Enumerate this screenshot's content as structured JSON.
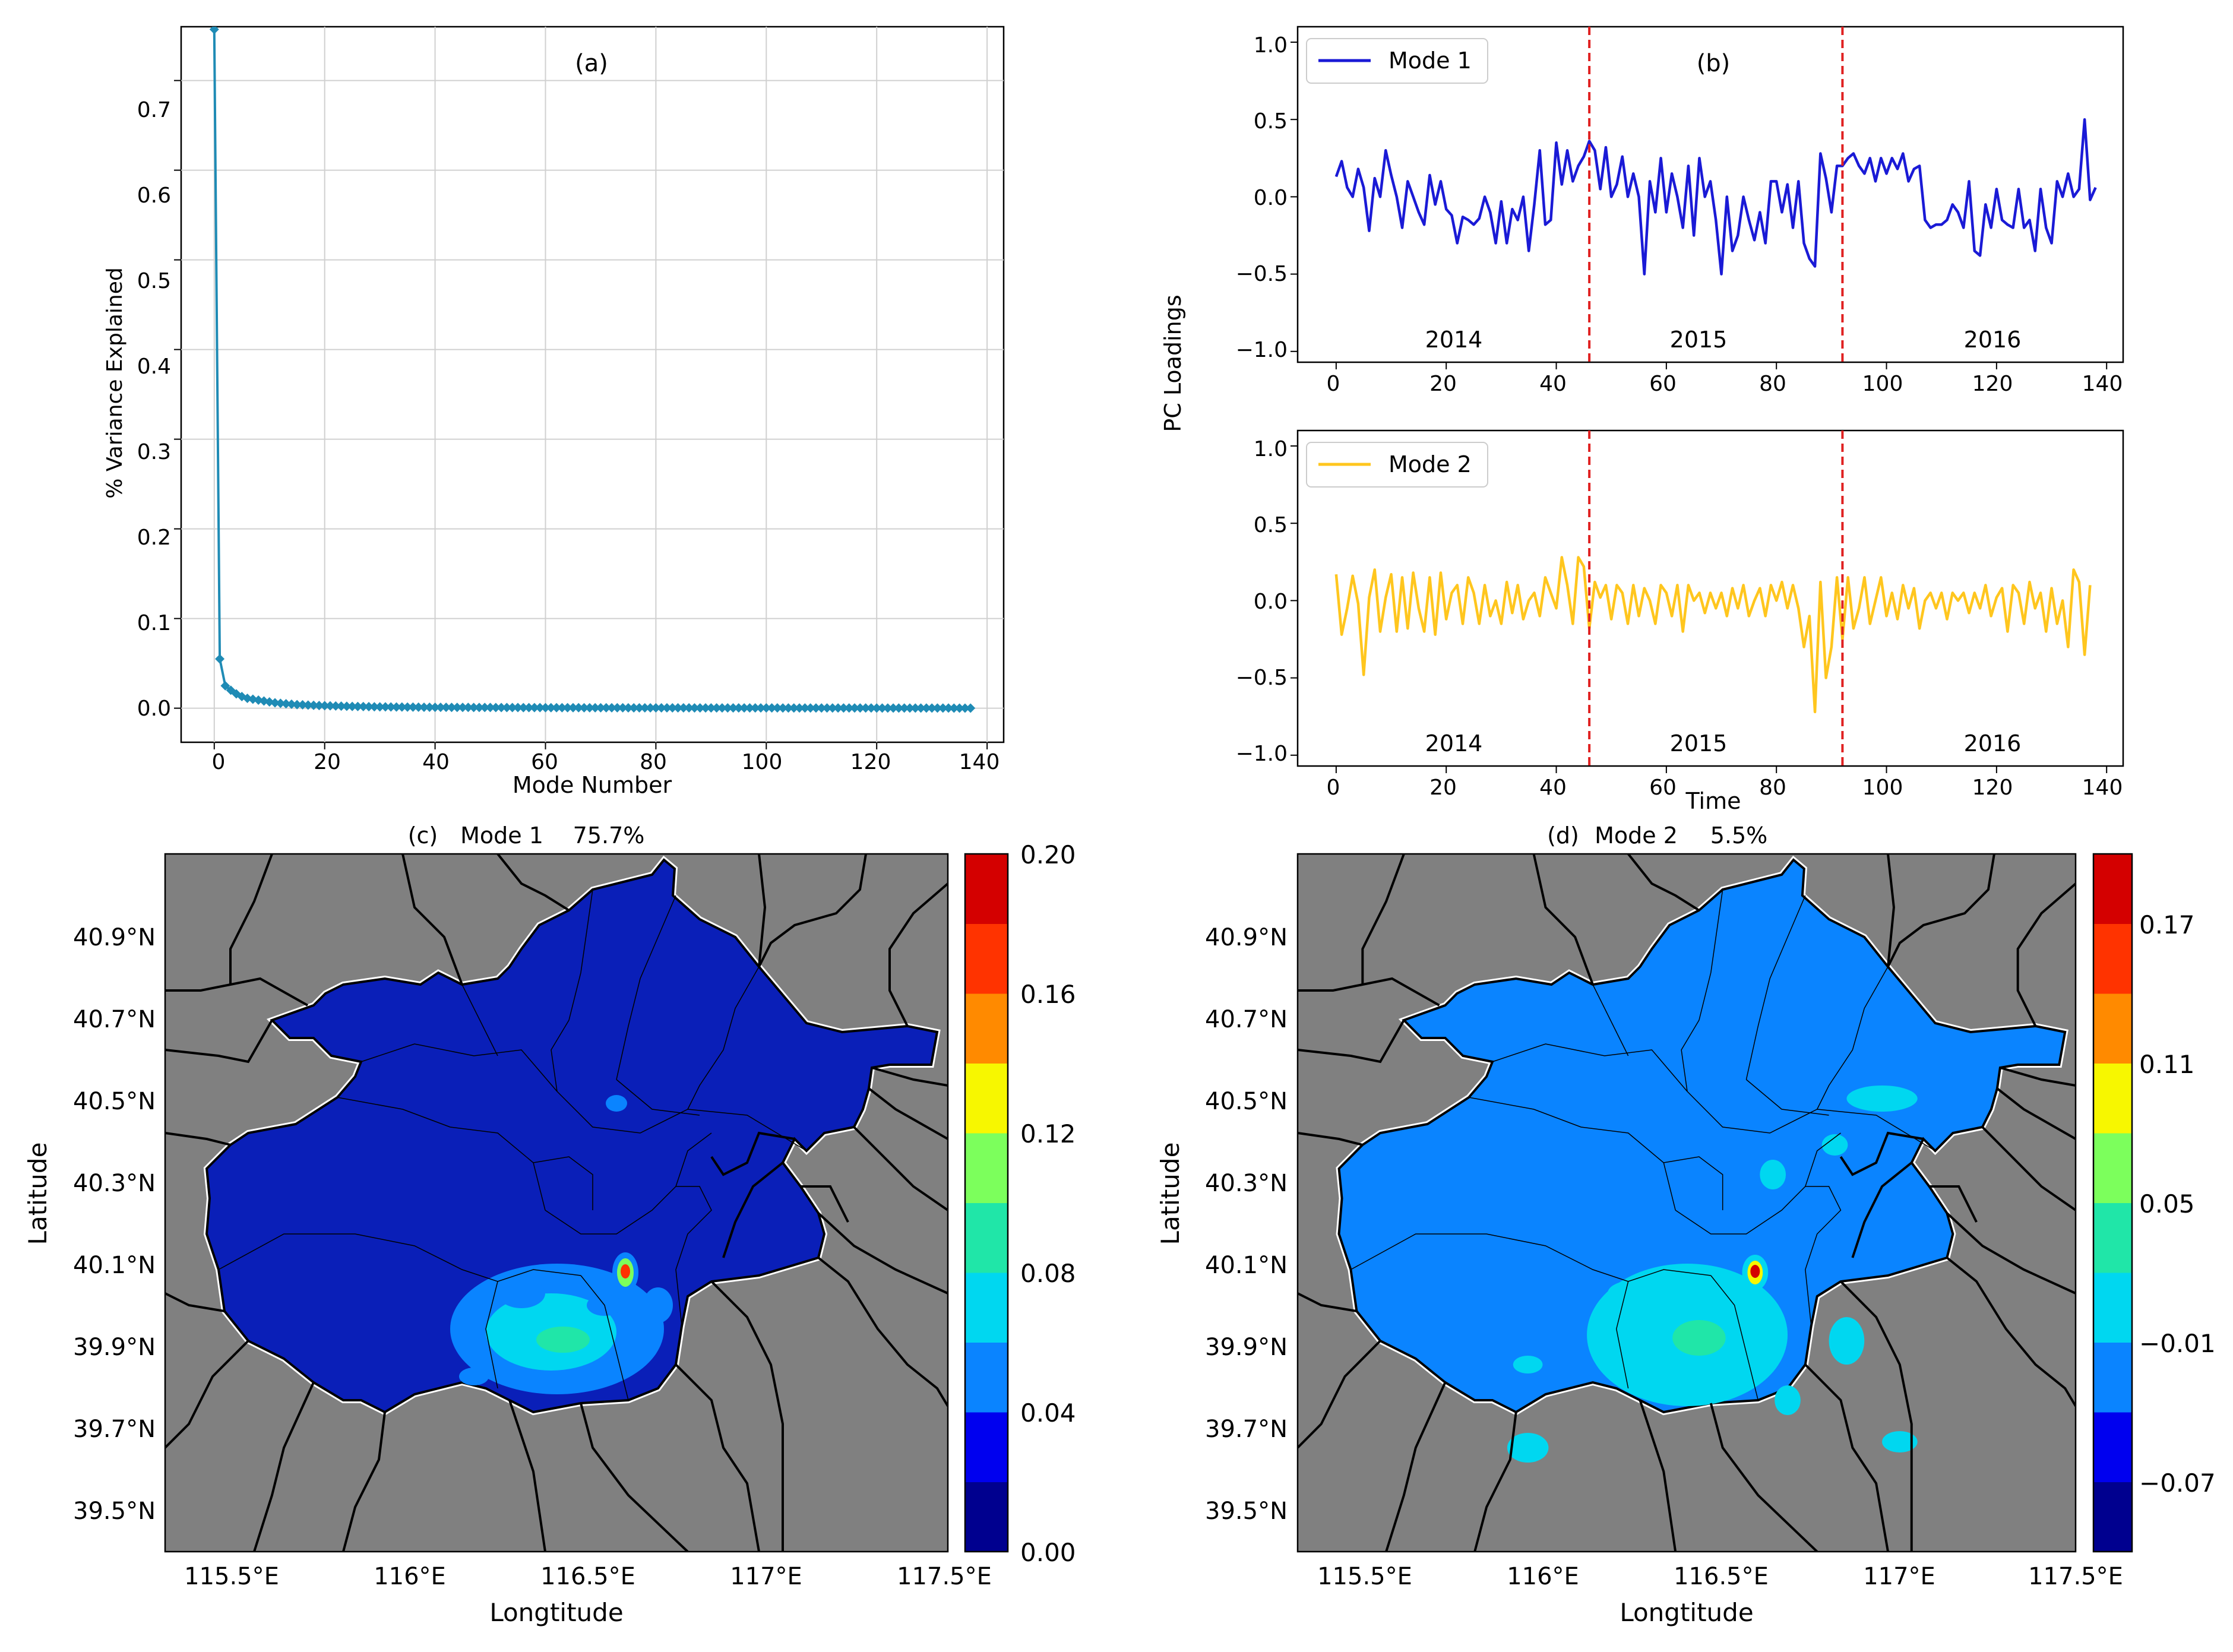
{
  "panels": {
    "a": {
      "tag": "(a)",
      "xlabel": "Mode Number",
      "ylabel": "% Variance Explained",
      "xticks": [
        "0",
        "20",
        "40",
        "60",
        "80",
        "100",
        "120",
        "140"
      ],
      "yticks": [
        "0.0",
        "0.1",
        "0.2",
        "0.3",
        "0.4",
        "0.5",
        "0.6",
        "0.7"
      ]
    },
    "b": {
      "tag": "(b)",
      "ylabel": "PC Loadings",
      "xlabel": "Time",
      "legend1": "Mode 1",
      "legend2": "Mode 2",
      "years": [
        "2014",
        "2015",
        "2016"
      ],
      "xticks": [
        "0",
        "20",
        "40",
        "60",
        "80",
        "100",
        "120",
        "140"
      ],
      "yticks": [
        "1.0",
        "0.5",
        "0.0",
        "−0.5",
        "−1.0"
      ]
    },
    "c": {
      "tag": "(c)",
      "mode": "Mode 1",
      "pct": "75.7%",
      "xlabel": "Longtitude",
      "ylabel": "Latitude",
      "cbar_ticks": [
        "0.20",
        "0.16",
        "0.12",
        "0.08",
        "0.04",
        "0.00"
      ]
    },
    "d": {
      "tag": "(d)",
      "mode": "Mode 2",
      "pct": "5.5%",
      "xlabel": "Longtitude",
      "ylabel": "Latitude",
      "cbar_ticks": [
        "0.17",
        "0.11",
        "0.05",
        "−0.01",
        "−0.07"
      ]
    },
    "map_xticks": [
      "115.5°E",
      "116°E",
      "116.5°E",
      "117°E",
      "117.5°E"
    ],
    "map_yticks": [
      "40.9°N",
      "40.7°N",
      "40.5°N",
      "40.3°N",
      "40.1°N",
      "39.9°N",
      "39.7°N",
      "39.5°N"
    ]
  },
  "colors": {
    "scree": "#1f8bb5",
    "mode1": "#1a1ad6",
    "mode2": "#ffc61e",
    "divider": "#e02020",
    "grid": "#d0d0d0",
    "land": "#808080",
    "map_c_fill": "#0a1fb8",
    "map_d_fill": "#0a84ff",
    "colorbar": [
      "#00008f",
      "#0000ef",
      "#0a84ff",
      "#00d7f0",
      "#20e6a8",
      "#7cff5c",
      "#f7f700",
      "#ff8a00",
      "#ff3300",
      "#d40000"
    ]
  },
  "chart_data": [
    {
      "type": "scatter",
      "panel": "a",
      "title": "(a)",
      "xlabel": "Mode Number",
      "ylabel": "% Variance Explained",
      "xlim": [
        -6,
        143
      ],
      "ylim": [
        -0.038,
        0.76
      ],
      "x": [
        0,
        1,
        2,
        3,
        4,
        5,
        6,
        7,
        8,
        9,
        10,
        11,
        12,
        13,
        14,
        15,
        16,
        17,
        18,
        19,
        20,
        25,
        30,
        40,
        50,
        60,
        80,
        100,
        120,
        137
      ],
      "values": [
        0.757,
        0.055,
        0.025,
        0.02,
        0.016,
        0.013,
        0.011,
        0.01,
        0.009,
        0.008,
        0.007,
        0.006,
        0.0055,
        0.005,
        0.0045,
        0.004,
        0.0038,
        0.0035,
        0.0032,
        0.003,
        0.0028,
        0.002,
        0.0015,
        0.001,
        0.0008,
        0.0006,
        0.0004,
        0.0003,
        0.0002,
        0.0001
      ]
    },
    {
      "type": "line",
      "panel": "b-top",
      "xlabel": "Time",
      "ylabel": "PC Loadings",
      "xlim": [
        -7,
        143
      ],
      "ylim": [
        -1.07,
        1.1
      ],
      "dividers": [
        46,
        92
      ],
      "series": [
        {
          "name": "Mode 1",
          "values": [
            0.13,
            0.23,
            0.06,
            0.0,
            0.18,
            0.06,
            -0.22,
            0.12,
            0.0,
            0.3,
            0.14,
            0.0,
            -0.2,
            0.1,
            0.0,
            -0.1,
            -0.18,
            0.14,
            -0.05,
            0.1,
            -0.08,
            -0.12,
            -0.3,
            -0.13,
            -0.15,
            -0.18,
            -0.14,
            0.0,
            -0.1,
            -0.3,
            -0.03,
            -0.3,
            -0.08,
            -0.15,
            0.0,
            -0.35,
            -0.05,
            0.3,
            -0.18,
            -0.15,
            0.35,
            0.08,
            0.3,
            0.1,
            0.2,
            0.26,
            0.36,
            0.3,
            0.05,
            0.32,
            0.0,
            0.08,
            0.26,
            0.0,
            0.15,
            0.0,
            -0.5,
            0.1,
            -0.1,
            0.25,
            -0.1,
            0.15,
            0.0,
            -0.2,
            0.2,
            -0.25,
            0.25,
            0.0,
            0.1,
            -0.15,
            -0.5,
            0.0,
            -0.35,
            -0.25,
            0.0,
            -0.15,
            -0.28,
            -0.1,
            -0.3,
            0.1,
            0.1,
            -0.1,
            0.08,
            -0.2,
            0.1,
            -0.3,
            -0.4,
            -0.45,
            0.28,
            0.12,
            -0.1,
            0.2,
            0.2,
            0.25,
            0.28,
            0.2,
            0.15,
            0.25,
            0.1,
            0.25,
            0.15,
            0.25,
            0.18,
            0.28,
            0.1,
            0.18,
            0.2,
            -0.15,
            -0.2,
            -0.18,
            -0.18,
            -0.15,
            -0.05,
            -0.1,
            -0.2,
            0.1,
            -0.35,
            -0.38,
            -0.05,
            -0.2,
            0.05,
            -0.15,
            -0.18,
            -0.2,
            0.05,
            -0.2,
            -0.15,
            -0.35,
            0.05,
            -0.2,
            -0.3,
            0.1,
            0.0,
            0.15,
            0.0,
            0.05,
            0.5,
            -0.02,
            0.06
          ]
        }
      ],
      "annotations": [
        "2014",
        "2015",
        "2016"
      ]
    },
    {
      "type": "line",
      "panel": "b-bottom",
      "xlabel": "Time",
      "ylabel": "PC Loadings",
      "xlim": [
        -7,
        143
      ],
      "ylim": [
        -1.07,
        1.1
      ],
      "dividers": [
        46,
        92
      ],
      "series": [
        {
          "name": "Mode 2",
          "values": [
            0.17,
            -0.22,
            -0.05,
            0.16,
            -0.02,
            -0.48,
            0.02,
            0.2,
            -0.2,
            0.02,
            0.17,
            -0.2,
            0.15,
            -0.18,
            0.18,
            -0.05,
            -0.2,
            0.15,
            -0.22,
            0.18,
            -0.12,
            0.05,
            0.1,
            -0.15,
            0.15,
            0.05,
            -0.15,
            0.1,
            -0.1,
            0.0,
            -0.15,
            0.12,
            -0.08,
            0.1,
            -0.12,
            0.0,
            0.05,
            -0.1,
            0.15,
            0.05,
            -0.05,
            0.28,
            0.1,
            -0.15,
            0.28,
            0.22,
            -0.18,
            0.12,
            0.02,
            0.1,
            -0.12,
            0.1,
            0.05,
            -0.15,
            0.1,
            -0.1,
            0.08,
            0.0,
            -0.15,
            0.1,
            0.05,
            -0.1,
            0.1,
            -0.2,
            0.1,
            0.0,
            0.05,
            -0.08,
            0.05,
            -0.05,
            0.05,
            -0.1,
            0.08,
            -0.05,
            0.1,
            -0.1,
            0.0,
            0.08,
            -0.1,
            0.1,
            0.0,
            0.12,
            -0.05,
            0.1,
            -0.05,
            -0.3,
            -0.1,
            -0.72,
            0.12,
            -0.5,
            -0.3,
            0.15,
            -0.25,
            0.15,
            -0.18,
            -0.05,
            0.15,
            -0.15,
            0.0,
            0.15,
            -0.1,
            0.05,
            -0.12,
            0.1,
            -0.05,
            0.08,
            -0.18,
            0.0,
            0.05,
            -0.05,
            0.05,
            -0.12,
            0.05,
            0.0,
            0.05,
            -0.08,
            0.05,
            -0.05,
            0.1,
            -0.1,
            0.02,
            0.08,
            -0.2,
            0.1,
            0.05,
            -0.15,
            0.12,
            -0.05,
            0.05,
            -0.2,
            0.08,
            -0.15,
            0.0,
            -0.3,
            0.2,
            0.12,
            -0.35,
            0.1
          ]
        }
      ],
      "annotations": [
        "2014",
        "2015",
        "2016"
      ]
    },
    {
      "type": "heatmap",
      "panel": "c",
      "title": "(c)  Mode 1   75.7%",
      "xlabel": "Longtitude",
      "ylabel": "Latitude",
      "xlim": [
        115.3,
        117.5
      ],
      "ylim": [
        39.4,
        41.1
      ],
      "colorbar_range": [
        0.0,
        0.2
      ],
      "colorbar_levels": 10
    },
    {
      "type": "heatmap",
      "panel": "d",
      "title": "(d)  Mode 2   5.5%",
      "xlabel": "Longtitude",
      "ylabel": "Latitude",
      "xlim": [
        115.3,
        117.5
      ],
      "ylim": [
        39.4,
        41.1
      ],
      "colorbar_range": [
        -0.1,
        0.2
      ],
      "colorbar_levels": 10
    }
  ]
}
